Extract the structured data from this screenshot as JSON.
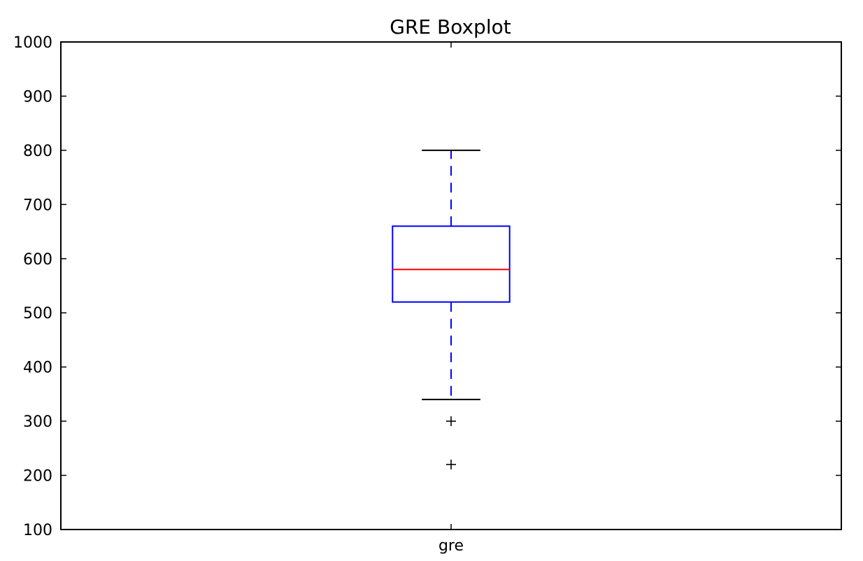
{
  "chart_data": {
    "type": "boxplot",
    "title": "GRE Boxplot",
    "xlabel": "",
    "ylabel": "",
    "ylim": [
      100,
      1000
    ],
    "yticks": [
      "100",
      "200",
      "300",
      "400",
      "500",
      "600",
      "700",
      "800",
      "900",
      "1000"
    ],
    "categories": [
      "gre"
    ],
    "series": [
      {
        "whisker_low": 340,
        "q1": 520,
        "median": 580,
        "q3": 660,
        "whisker_high": 800,
        "outliers": [
          300,
          220
        ]
      }
    ],
    "colors": {
      "box": "#0000ff",
      "whisker": "#0000ff",
      "cap": "#000000",
      "median": "#ff0000",
      "outlier": "#000000",
      "axes": "#000000"
    },
    "grid": false
  }
}
